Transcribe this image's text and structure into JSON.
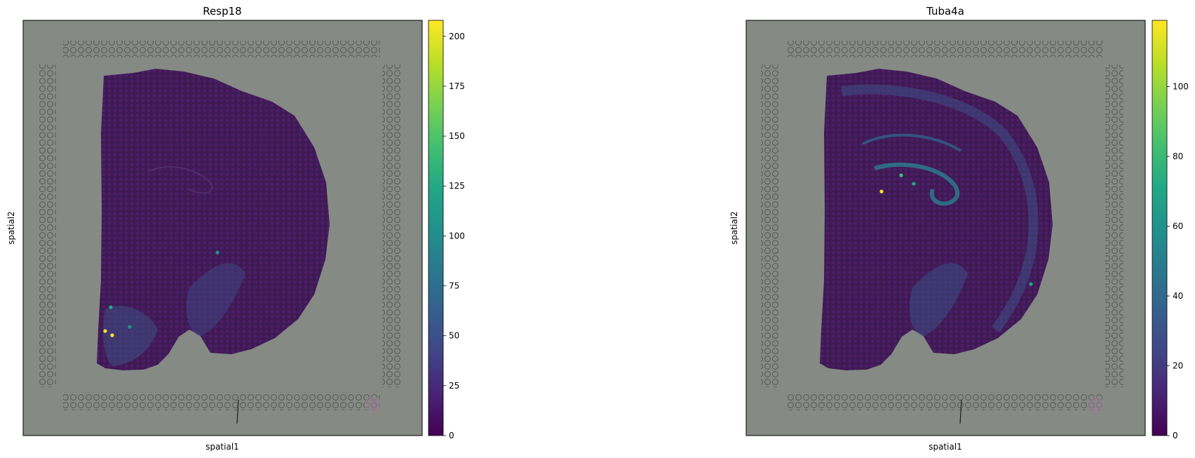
{
  "chart_data": [
    {
      "type": "scatter",
      "title": "Resp18",
      "xlabel": "spatial1",
      "ylabel": "spatial2",
      "colormap": "viridis",
      "colorbar": {
        "min": 0,
        "max": 208,
        "ticks": [
          0,
          25,
          50,
          75,
          100,
          125,
          150,
          175,
          200
        ]
      },
      "background_image": "tissue-section",
      "grid": false,
      "hotspots": [
        {
          "region": "lower-left lobe",
          "value": 208
        },
        {
          "region": "lower-left lobe",
          "value": 200
        },
        {
          "region": "lower-left lobe",
          "value": 130
        },
        {
          "region": "lower-left lobe",
          "value": 110
        },
        {
          "region": "central strip",
          "value": 105
        }
      ]
    },
    {
      "type": "scatter",
      "title": "Tuba4a",
      "xlabel": "spatial1",
      "ylabel": "spatial2",
      "colormap": "viridis",
      "colorbar": {
        "min": 0,
        "max": 119,
        "ticks": [
          0,
          20,
          40,
          60,
          80,
          100
        ]
      },
      "background_image": "tissue-section",
      "grid": false,
      "hotspots": [
        {
          "region": "hippocampus arc",
          "value": 119
        },
        {
          "region": "hippocampus arc",
          "value": 85
        },
        {
          "region": "hippocampus arc",
          "value": 75
        },
        {
          "region": "right edge",
          "value": 70
        }
      ]
    }
  ]
}
